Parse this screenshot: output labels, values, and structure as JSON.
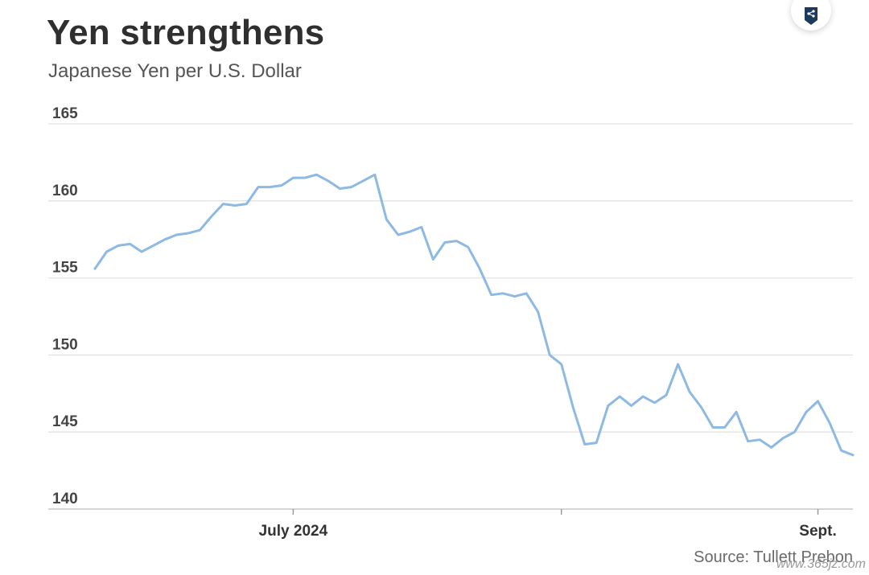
{
  "title": "Yen strengthens",
  "subtitle": "Japanese Yen per U.S. Dollar",
  "source": "Source: Tullett Prebon",
  "watermark": "www.365jz.com",
  "colors": {
    "line": "#8db9e3",
    "grid": "#e3e3e3",
    "axis": "#c8c8c8"
  },
  "icons": {
    "share": "share-icon"
  },
  "chart_data": {
    "type": "line",
    "title": "Yen strengthens",
    "subtitle": "Japanese Yen per U.S. Dollar",
    "xlabel": "",
    "ylabel": "",
    "ylim": [
      140,
      165
    ],
    "yticks": [
      165,
      160,
      155,
      150,
      145,
      140
    ],
    "xtick_labels": [
      "July 2024",
      "",
      "Sept."
    ],
    "grid": true,
    "series": [
      {
        "values": [
          155.6,
          156.7,
          157.1,
          157.2,
          156.7,
          157.1,
          157.5,
          157.8,
          157.9,
          158.1,
          159.0,
          159.8,
          159.7,
          159.8,
          160.9,
          160.9,
          161.0,
          161.5,
          161.5,
          161.7,
          161.3,
          160.8,
          160.9,
          161.3,
          161.7,
          158.8,
          157.8,
          158.0,
          158.3,
          156.2,
          157.3,
          157.4,
          157.0,
          155.6,
          153.9,
          154.0,
          153.8,
          154.0,
          152.8,
          150.0,
          149.4,
          146.6,
          144.2,
          144.3,
          146.7,
          147.3,
          146.7,
          147.3,
          146.9,
          147.4,
          149.4,
          147.6,
          146.6,
          145.3,
          145.3,
          146.3,
          144.4,
          144.5,
          144.0,
          144.6,
          145.0,
          146.3,
          147.0,
          145.6,
          143.8,
          143.5
        ]
      }
    ]
  }
}
